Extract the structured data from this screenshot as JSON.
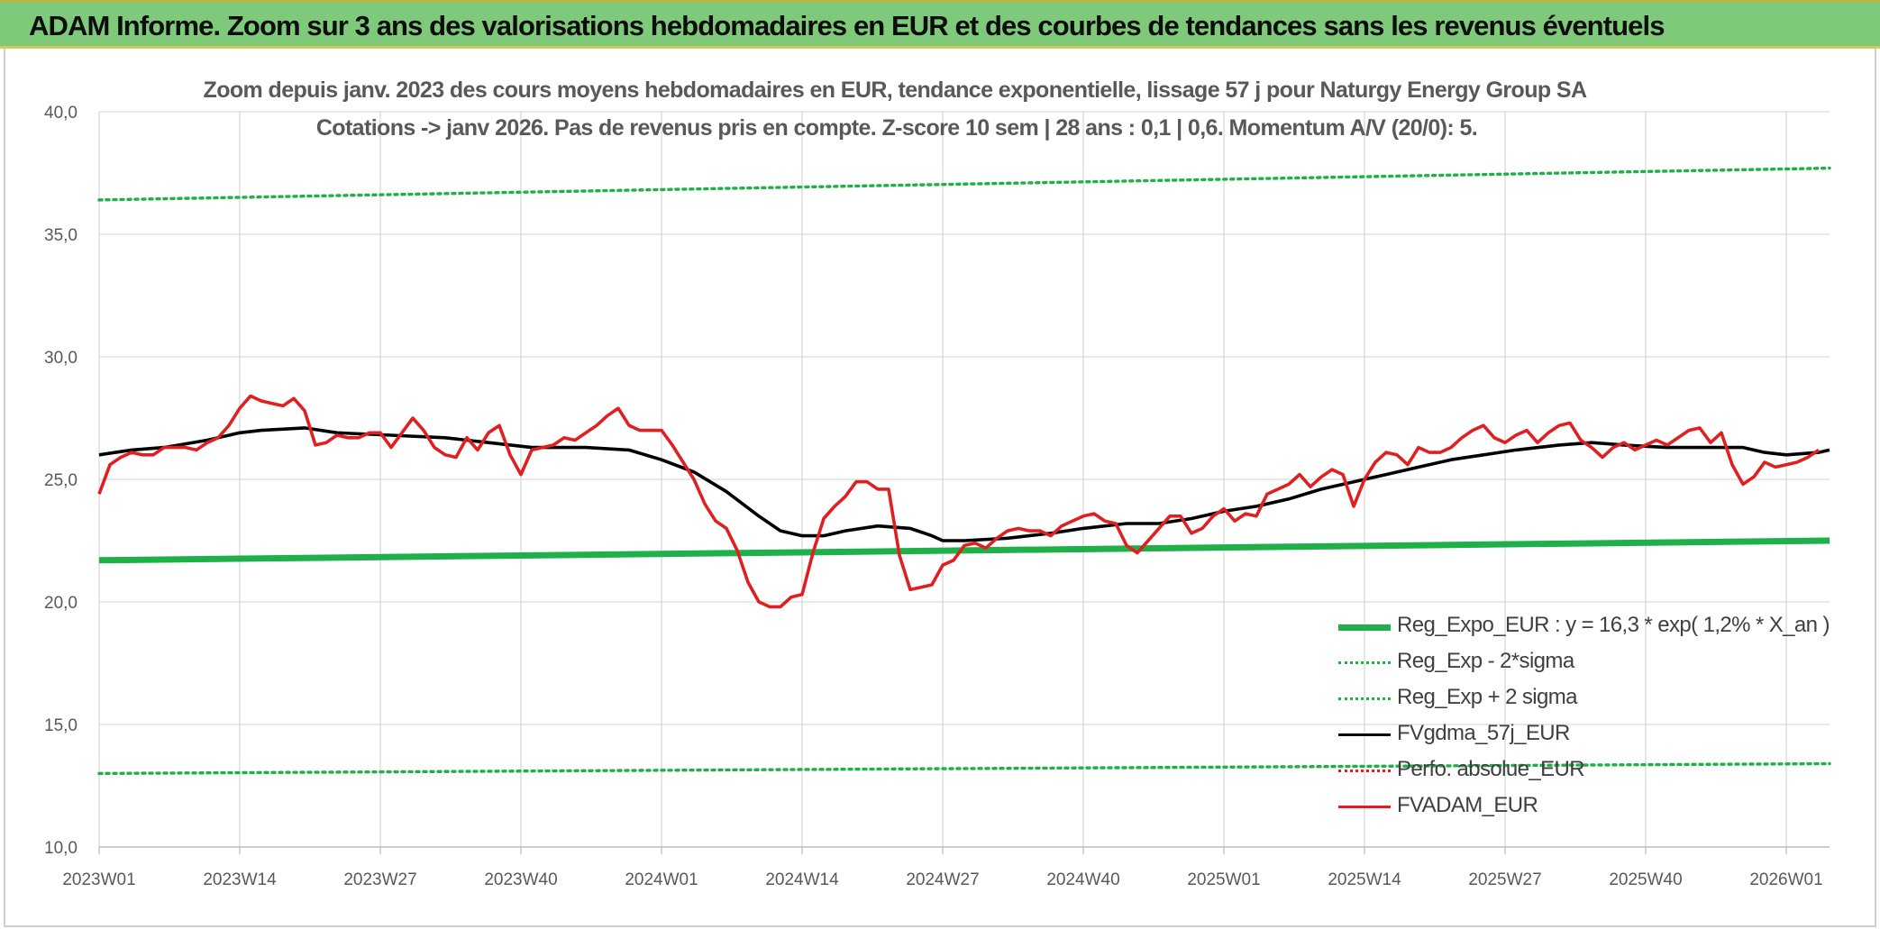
{
  "banner": {
    "title": "ADAM Informe. Zoom sur 3 ans des valorisations hebdomadaires en EUR et des courbes de tendances sans les revenus éventuels"
  },
  "chart_data": {
    "type": "line",
    "title": "Zoom depuis janv. 2023 des cours moyens hebdomadaires en EUR, tendance exponentielle, lissage 57 j pour Naturgy Energy Group SA",
    "subtitle": "Cotations -> janv 2026. Pas de revenus pris en compte. Z-score 10 sem | 28 ans : 0,1 | 0,6. Momentum A/V (20/0): 5.",
    "ylim": [
      10,
      40
    ],
    "yticks": [
      "10,0",
      "15,0",
      "20,0",
      "25,0",
      "30,0",
      "35,0",
      "40,0"
    ],
    "x_count": 160,
    "xticks": [
      {
        "index": 0,
        "label": "2023W01"
      },
      {
        "index": 13,
        "label": "2023W14"
      },
      {
        "index": 26,
        "label": "2023W27"
      },
      {
        "index": 39,
        "label": "2023W40"
      },
      {
        "index": 52,
        "label": "2024W01"
      },
      {
        "index": 65,
        "label": "2024W14"
      },
      {
        "index": 78,
        "label": "2024W27"
      },
      {
        "index": 91,
        "label": "2024W40"
      },
      {
        "index": 104,
        "label": "2025W01"
      },
      {
        "index": 117,
        "label": "2025W14"
      },
      {
        "index": 130,
        "label": "2025W27"
      },
      {
        "index": 143,
        "label": "2025W40"
      },
      {
        "index": 156,
        "label": "2026W01"
      }
    ],
    "grid": true,
    "legend_position": "bottom-right",
    "series": [
      {
        "name": "Reg_Expo_EUR : y = 16,3 * exp( 1,2% *  X_an )",
        "color": "#1fb04a",
        "style": "solid-thick",
        "points": [
          [
            0,
            21.7
          ],
          [
            160,
            22.5
          ]
        ]
      },
      {
        "name": "Reg_Exp - 2*sigma",
        "color": "#1fb04a",
        "style": "dotted",
        "points": [
          [
            0,
            13.0
          ],
          [
            160,
            13.4
          ]
        ]
      },
      {
        "name": "Reg_Exp + 2 sigma",
        "color": "#1fb04a",
        "style": "dotted",
        "points": [
          [
            0,
            36.4
          ],
          [
            160,
            37.7
          ]
        ]
      },
      {
        "name": "FVgdma_57j_EUR",
        "color": "#000000",
        "style": "solid",
        "points": [
          [
            0,
            26.0
          ],
          [
            3,
            26.2
          ],
          [
            6,
            26.3
          ],
          [
            10,
            26.6
          ],
          [
            13,
            26.9
          ],
          [
            15,
            27.0
          ],
          [
            19,
            27.1
          ],
          [
            22,
            26.9
          ],
          [
            27,
            26.8
          ],
          [
            32,
            26.7
          ],
          [
            36,
            26.5
          ],
          [
            40,
            26.3
          ],
          [
            45,
            26.3
          ],
          [
            49,
            26.2
          ],
          [
            52,
            25.8
          ],
          [
            55,
            25.3
          ],
          [
            58,
            24.5
          ],
          [
            61,
            23.5
          ],
          [
            63,
            22.9
          ],
          [
            65,
            22.7
          ],
          [
            67,
            22.7
          ],
          [
            69,
            22.9
          ],
          [
            72,
            23.1
          ],
          [
            75,
            23.0
          ],
          [
            77,
            22.7
          ],
          [
            78,
            22.5
          ],
          [
            80,
            22.5
          ],
          [
            84,
            22.6
          ],
          [
            88,
            22.8
          ],
          [
            91,
            23.0
          ],
          [
            95,
            23.2
          ],
          [
            98,
            23.2
          ],
          [
            101,
            23.4
          ],
          [
            104,
            23.7
          ],
          [
            107,
            23.9
          ],
          [
            110,
            24.2
          ],
          [
            113,
            24.6
          ],
          [
            116,
            24.9
          ],
          [
            119,
            25.2
          ],
          [
            122,
            25.5
          ],
          [
            125,
            25.8
          ],
          [
            128,
            26.0
          ],
          [
            131,
            26.2
          ],
          [
            135,
            26.4
          ],
          [
            138,
            26.5
          ],
          [
            141,
            26.4
          ],
          [
            145,
            26.3
          ],
          [
            149,
            26.3
          ],
          [
            152,
            26.3
          ],
          [
            154,
            26.1
          ],
          [
            156,
            26.0
          ],
          [
            159,
            26.1
          ],
          [
            160,
            26.2
          ]
        ]
      },
      {
        "name": "Perfo. absolue_EUR",
        "color": "#e02020",
        "style": "dotted",
        "points": []
      },
      {
        "name": "FVADAM_EUR",
        "color": "#e02020",
        "style": "solid",
        "points": [
          [
            0,
            24.4
          ],
          [
            1,
            25.6
          ],
          [
            2,
            25.9
          ],
          [
            3,
            26.1
          ],
          [
            4,
            26.0
          ],
          [
            5,
            26.0
          ],
          [
            6,
            26.3
          ],
          [
            7,
            26.3
          ],
          [
            8,
            26.3
          ],
          [
            9,
            26.2
          ],
          [
            10,
            26.5
          ],
          [
            11,
            26.7
          ],
          [
            12,
            27.2
          ],
          [
            13,
            27.9
          ],
          [
            14,
            28.4
          ],
          [
            15,
            28.2
          ],
          [
            16,
            28.1
          ],
          [
            17,
            28.0
          ],
          [
            18,
            28.3
          ],
          [
            19,
            27.8
          ],
          [
            20,
            26.4
          ],
          [
            21,
            26.5
          ],
          [
            22,
            26.8
          ],
          [
            23,
            26.7
          ],
          [
            24,
            26.7
          ],
          [
            25,
            26.9
          ],
          [
            26,
            26.9
          ],
          [
            27,
            26.3
          ],
          [
            28,
            26.9
          ],
          [
            29,
            27.5
          ],
          [
            30,
            27.0
          ],
          [
            31,
            26.3
          ],
          [
            32,
            26.0
          ],
          [
            33,
            25.9
          ],
          [
            34,
            26.7
          ],
          [
            35,
            26.2
          ],
          [
            36,
            26.9
          ],
          [
            37,
            27.2
          ],
          [
            38,
            26.0
          ],
          [
            39,
            25.2
          ],
          [
            40,
            26.2
          ],
          [
            41,
            26.3
          ],
          [
            42,
            26.4
          ],
          [
            43,
            26.7
          ],
          [
            44,
            26.6
          ],
          [
            45,
            26.9
          ],
          [
            46,
            27.2
          ],
          [
            47,
            27.6
          ],
          [
            48,
            27.9
          ],
          [
            49,
            27.2
          ],
          [
            50,
            27.0
          ],
          [
            51,
            27.0
          ],
          [
            52,
            27.0
          ],
          [
            53,
            26.4
          ],
          [
            54,
            25.7
          ],
          [
            55,
            25.0
          ],
          [
            56,
            24.0
          ],
          [
            57,
            23.3
          ],
          [
            58,
            23.0
          ],
          [
            59,
            22.1
          ],
          [
            60,
            20.8
          ],
          [
            61,
            20.0
          ],
          [
            62,
            19.8
          ],
          [
            63,
            19.8
          ],
          [
            64,
            20.2
          ],
          [
            65,
            20.3
          ],
          [
            66,
            22.0
          ],
          [
            67,
            23.4
          ],
          [
            68,
            23.9
          ],
          [
            69,
            24.3
          ],
          [
            70,
            24.9
          ],
          [
            71,
            24.9
          ],
          [
            72,
            24.6
          ],
          [
            73,
            24.6
          ],
          [
            74,
            21.9
          ],
          [
            75,
            20.5
          ],
          [
            76,
            20.6
          ],
          [
            77,
            20.7
          ],
          [
            78,
            21.5
          ],
          [
            79,
            21.7
          ],
          [
            80,
            22.3
          ],
          [
            81,
            22.4
          ],
          [
            82,
            22.2
          ],
          [
            83,
            22.6
          ],
          [
            84,
            22.9
          ],
          [
            85,
            23.0
          ],
          [
            86,
            22.9
          ],
          [
            87,
            22.9
          ],
          [
            88,
            22.7
          ],
          [
            89,
            23.1
          ],
          [
            90,
            23.3
          ],
          [
            91,
            23.5
          ],
          [
            92,
            23.6
          ],
          [
            93,
            23.3
          ],
          [
            94,
            23.2
          ],
          [
            95,
            22.3
          ],
          [
            96,
            22.0
          ],
          [
            97,
            22.5
          ],
          [
            98,
            23.0
          ],
          [
            99,
            23.5
          ],
          [
            100,
            23.5
          ],
          [
            101,
            22.8
          ],
          [
            102,
            23.0
          ],
          [
            103,
            23.5
          ],
          [
            104,
            23.8
          ],
          [
            105,
            23.3
          ],
          [
            106,
            23.6
          ],
          [
            107,
            23.5
          ],
          [
            108,
            24.4
          ],
          [
            109,
            24.6
          ],
          [
            110,
            24.8
          ],
          [
            111,
            25.2
          ],
          [
            112,
            24.7
          ],
          [
            113,
            25.1
          ],
          [
            114,
            25.4
          ],
          [
            115,
            25.2
          ],
          [
            116,
            23.9
          ],
          [
            117,
            25.0
          ],
          [
            118,
            25.7
          ],
          [
            119,
            26.1
          ],
          [
            120,
            26.0
          ],
          [
            121,
            25.6
          ],
          [
            122,
            26.3
          ],
          [
            123,
            26.1
          ],
          [
            124,
            26.1
          ],
          [
            125,
            26.3
          ],
          [
            126,
            26.7
          ],
          [
            127,
            27.0
          ],
          [
            128,
            27.2
          ],
          [
            129,
            26.7
          ],
          [
            130,
            26.5
          ],
          [
            131,
            26.8
          ],
          [
            132,
            27.0
          ],
          [
            133,
            26.5
          ],
          [
            134,
            26.9
          ],
          [
            135,
            27.2
          ],
          [
            136,
            27.3
          ],
          [
            137,
            26.6
          ],
          [
            138,
            26.3
          ],
          [
            139,
            25.9
          ],
          [
            140,
            26.3
          ],
          [
            141,
            26.5
          ],
          [
            142,
            26.2
          ],
          [
            143,
            26.4
          ],
          [
            144,
            26.6
          ],
          [
            145,
            26.4
          ],
          [
            146,
            26.7
          ],
          [
            147,
            27.0
          ],
          [
            148,
            27.1
          ],
          [
            149,
            26.5
          ],
          [
            150,
            26.9
          ],
          [
            151,
            25.6
          ],
          [
            152,
            24.8
          ],
          [
            153,
            25.1
          ],
          [
            154,
            25.7
          ],
          [
            155,
            25.5
          ],
          [
            156,
            25.6
          ],
          [
            157,
            25.7
          ],
          [
            158,
            25.9
          ],
          [
            159,
            26.2
          ]
        ]
      }
    ]
  }
}
